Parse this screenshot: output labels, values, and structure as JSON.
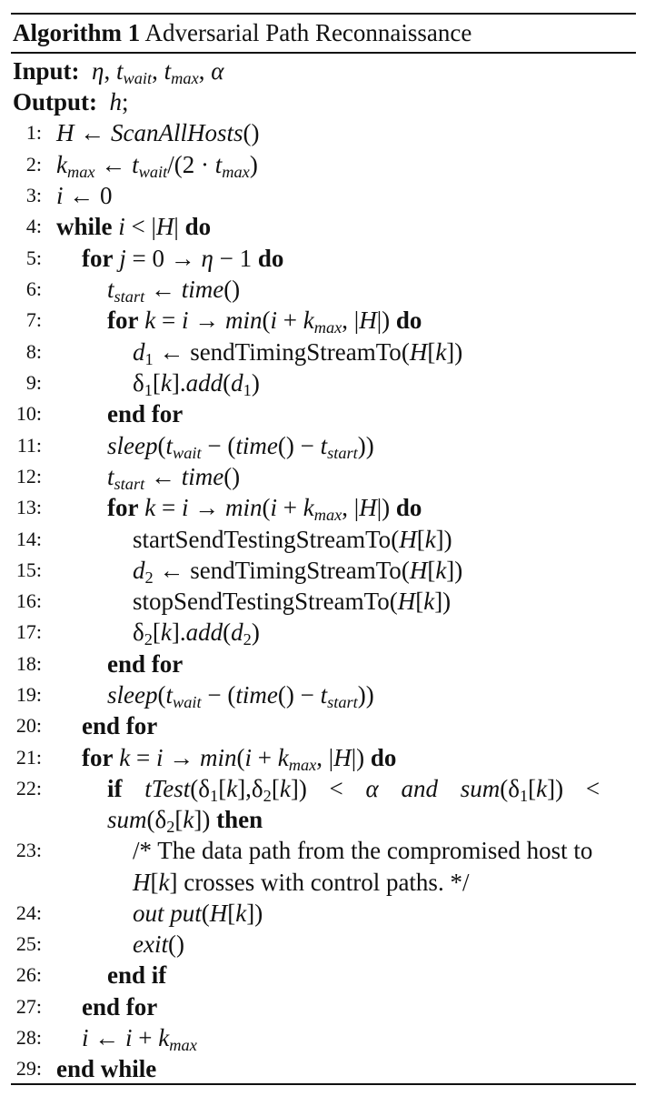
{
  "algorithm": {
    "label": "Algorithm 1",
    "title": "Adversarial Path Reconnaissance"
  },
  "io": {
    "input_label": "Input:",
    "output_label": "Output:"
  },
  "keywords": {
    "while": "while",
    "do": "do",
    "for": "for",
    "end_for": "end for",
    "if": "if",
    "then": "then",
    "end_if": "end if",
    "end_while": "end while",
    "and": "and"
  },
  "line_numbers": [
    "1:",
    "2:",
    "3:",
    "4:",
    "5:",
    "6:",
    "7:",
    "8:",
    "9:",
    "10:",
    "11:",
    "12:",
    "13:",
    "14:",
    "15:",
    "16:",
    "17:",
    "18:",
    "19:",
    "20:",
    "21:",
    "22:",
    "23:",
    "24:",
    "25:",
    "26:",
    "27:",
    "28:",
    "29:"
  ],
  "text": {
    "scan_all_hosts": "ScanAllHosts",
    "time": "time",
    "min": "min",
    "send_timing": "sendTimingStreamTo",
    "add": "add",
    "sleep": "sleep",
    "start_send_testing": "startSendTestingStreamTo",
    "stop_send_testing": "stopSendTestingStreamTo",
    "ttest": "tTest",
    "sum": "sum",
    "comment_line1": "/* The data path from the compromised host to",
    "comment_line2": "crosses with control paths. */",
    "output_fn": "out put",
    "exit_fn": "exit"
  }
}
